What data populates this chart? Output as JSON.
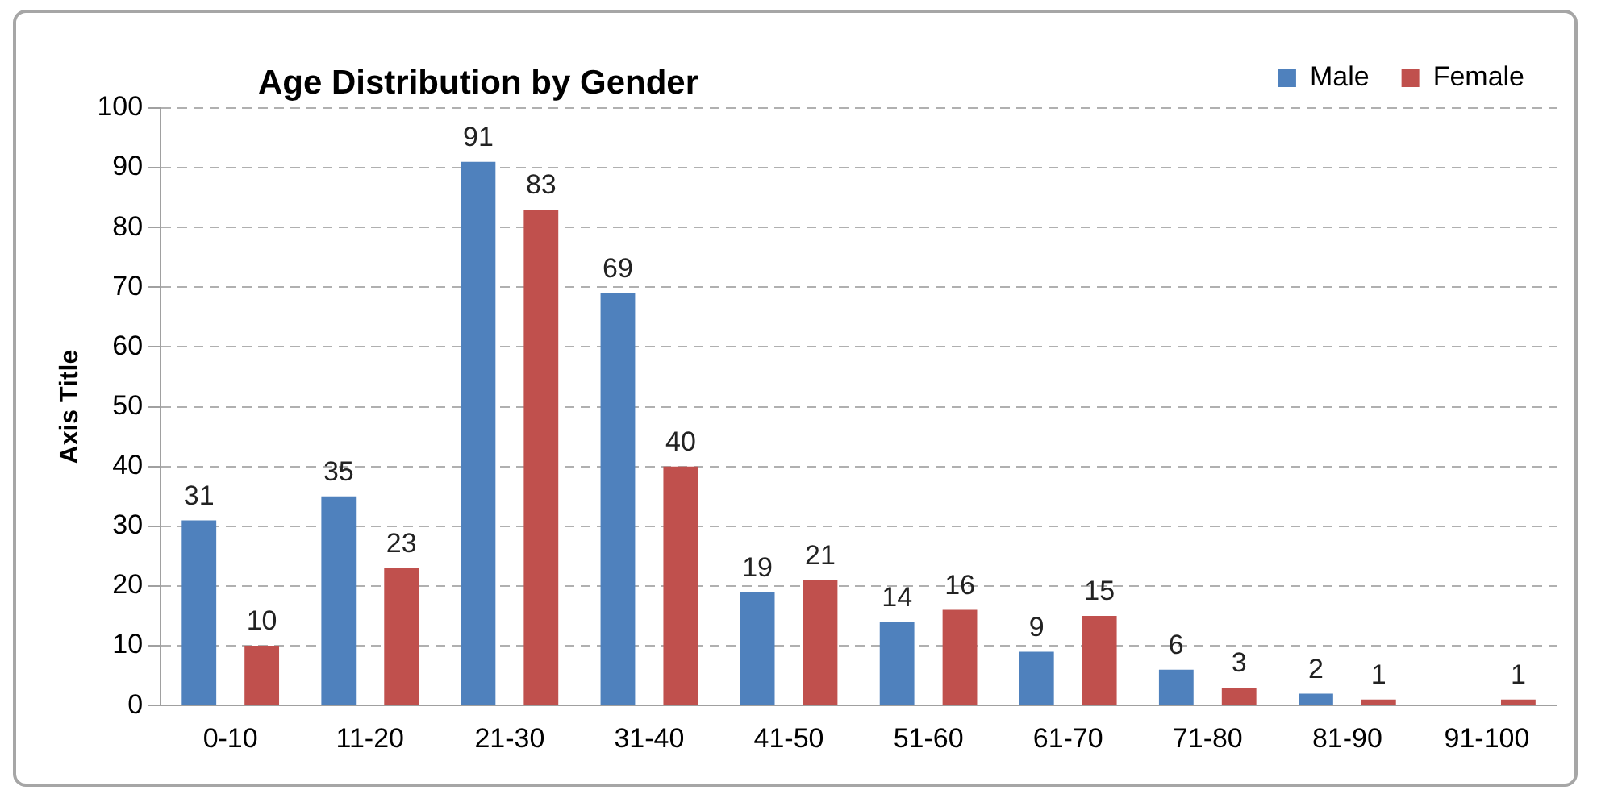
{
  "chart_data": {
    "type": "bar",
    "title": "Age Distribution by Gender",
    "ylabel": "Axis Title",
    "categories": [
      "0-10",
      "11-20",
      "21-30",
      "31-40",
      "41-50",
      "51-60",
      "61-70",
      "71-80",
      "81-90",
      "91-100"
    ],
    "series": [
      {
        "name": "Male",
        "color": "#4f81bd",
        "values": [
          31,
          35,
          91,
          69,
          19,
          14,
          9,
          6,
          2,
          null
        ]
      },
      {
        "name": "Female",
        "color": "#c0504d",
        "values": [
          10,
          23,
          83,
          40,
          21,
          16,
          15,
          3,
          1,
          1
        ]
      }
    ],
    "ylim": [
      0,
      100
    ],
    "yticks": [
      0,
      10,
      20,
      30,
      40,
      50,
      60,
      70,
      80,
      90,
      100
    ],
    "grid": "y",
    "legend": "top right",
    "data_labels": true
  }
}
